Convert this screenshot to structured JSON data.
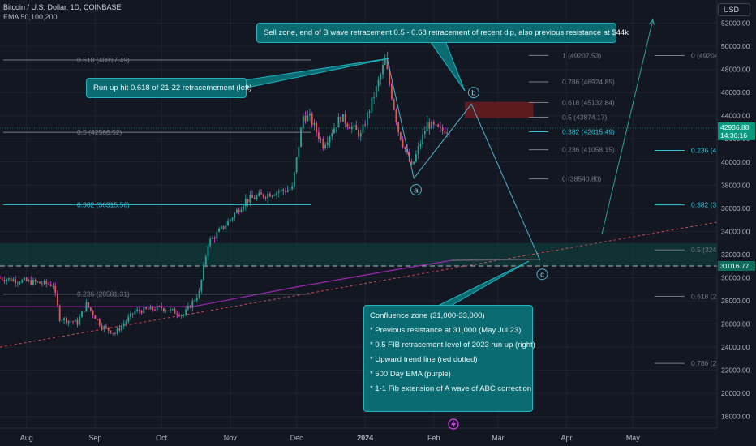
{
  "header": {
    "symbol": "Bitcoin / U.S. Dollar, 1D, COINBASE",
    "indicator": "EMA 50,100,200",
    "currency_button": "USD"
  },
  "annotations": {
    "sell_zone": "Sell zone, end of B wave retracement 0.5 - 0.68 retracement of recent dip, also previous resistance at $44k",
    "run_up": "Run up hit 0.618 of 21-22 retracemement (left)",
    "confluence_title": "Confluence zone (31,000-33,000)",
    "confluence_items": [
      "* Previous resistance at 31,000 (May Jul 23)",
      "* 0.5 FIB retracement level of 2023 run up (right)",
      "* Upward trend line (red dotted)",
      "* 500 Day EMA (purple)",
      "* 1-1 Fib extension of A wave of ABC correction"
    ]
  },
  "colors": {
    "background": "#131722",
    "up": "#26a69a",
    "down": "#ef5350",
    "candle_wick_down": "#e040fb",
    "ema": "#9c27b0",
    "fib_teal": "#26c6da",
    "fib_grey": "#787b86",
    "note_bg": "#0b6b73",
    "sell_zone": "#5d1a1f",
    "price_badge": "#089981",
    "support_badge": "#0b6b5c"
  },
  "chart_data": {
    "type": "candlestick",
    "y_axis_labels": [
      "52000.00",
      "50000.00",
      "48000.00",
      "46000.00",
      "44000.00",
      "42000.00",
      "40000.00",
      "38000.00",
      "36000.00",
      "34000.00",
      "32000.00",
      "30000.00",
      "28000.00",
      "26000.00",
      "24000.00",
      "22000.00",
      "20000.00",
      "18000.00"
    ],
    "y_axis_values": [
      52000,
      50000,
      48000,
      46000,
      44000,
      42000,
      40000,
      38000,
      36000,
      34000,
      32000,
      30000,
      28000,
      26000,
      24000,
      22000,
      20000,
      18000
    ],
    "x_axis_labels": [
      "Aug",
      "Sep",
      "Oct",
      "Nov",
      "Dec",
      "2024",
      "Feb",
      "Mar",
      "Apr",
      "May"
    ],
    "x_axis_dates": [
      "2023-08-01",
      "2023-09-01",
      "2023-10-01",
      "2023-11-01",
      "2023-12-01",
      "2024-01-01",
      "2024-02-01",
      "2024-03-01",
      "2024-04-01",
      "2024-05-01"
    ],
    "ylim": [
      17000,
      54000
    ],
    "xlim": [
      "2023-07-20",
      "2024-06-08"
    ],
    "last_price": {
      "value": 42936.88,
      "label": "42936.88",
      "countdown": "14:36:16"
    },
    "support_marker": {
      "value": 31016.77,
      "label": "31016.77"
    },
    "price_path": [
      {
        "date": "2023-07-20",
        "close": 30000
      },
      {
        "date": "2023-08-01",
        "close": 29700
      },
      {
        "date": "2023-08-14",
        "close": 29400
      },
      {
        "date": "2023-08-17",
        "close": 26500
      },
      {
        "date": "2023-08-25",
        "close": 26100
      },
      {
        "date": "2023-08-29",
        "close": 27700
      },
      {
        "date": "2023-09-05",
        "close": 25800
      },
      {
        "date": "2023-09-11",
        "close": 25200
      },
      {
        "date": "2023-09-20",
        "close": 27100
      },
      {
        "date": "2023-10-02",
        "close": 27400
      },
      {
        "date": "2023-10-12",
        "close": 26800
      },
      {
        "date": "2023-10-19",
        "close": 28700
      },
      {
        "date": "2023-10-23",
        "close": 33000
      },
      {
        "date": "2023-10-31",
        "close": 34600
      },
      {
        "date": "2023-11-09",
        "close": 36700
      },
      {
        "date": "2023-11-20",
        "close": 37300
      },
      {
        "date": "2023-11-30",
        "close": 37700
      },
      {
        "date": "2023-12-05",
        "close": 44000
      },
      {
        "date": "2023-12-08",
        "close": 43800
      },
      {
        "date": "2023-12-14",
        "close": 41500
      },
      {
        "date": "2023-12-22",
        "close": 43900
      },
      {
        "date": "2023-12-31",
        "close": 42300
      },
      {
        "date": "2024-01-08",
        "close": 46900
      },
      {
        "date": "2024-01-11",
        "close": 48800
      },
      {
        "date": "2024-01-17",
        "close": 42700
      },
      {
        "date": "2024-01-23",
        "close": 39500
      },
      {
        "date": "2024-01-30",
        "close": 43300
      },
      {
        "date": "2024-02-05",
        "close": 42700
      },
      {
        "date": "2024-02-09",
        "close": 42900
      }
    ],
    "ema_500": [
      {
        "date": "2023-07-20",
        "value": 27500
      },
      {
        "date": "2023-10-15",
        "value": 27500
      },
      {
        "date": "2023-12-01",
        "value": 29200
      },
      {
        "date": "2024-01-15",
        "value": 30700
      },
      {
        "date": "2024-02-09",
        "value": 31500
      }
    ],
    "ema_projection": [
      {
        "date": "2024-02-09",
        "value": 31500
      },
      {
        "date": "2024-03-20",
        "value": 31600
      }
    ],
    "trend_line": {
      "from": {
        "date": "2023-07-20",
        "value": 24000
      },
      "to": {
        "date": "2024-06-08",
        "value": 34800
      }
    },
    "support_band": [
      31000,
      33000
    ],
    "support_dashed": 31016.77,
    "fib_left": [
      {
        "ratio": "0.618",
        "value": 48817.49,
        "label": "0.618 (48817.49)",
        "color": "grey"
      },
      {
        "ratio": "0.5",
        "value": 42566.52,
        "label": "0.5 (42566.52)",
        "color": "grey"
      },
      {
        "ratio": "0.382",
        "value": 36315.56,
        "label": "0.382 (36315.56)",
        "color": "teal"
      },
      {
        "ratio": "0.236",
        "value": 28581.31,
        "label": "0.236 (28581.31)",
        "color": "grey"
      }
    ],
    "fib_mid": [
      {
        "ratio": "1",
        "value": 49207.53,
        "label": "1 (49207.53)",
        "color": "grey"
      },
      {
        "ratio": "0.786",
        "value": 46924.85,
        "label": "0.786 (46924.85)",
        "color": "grey"
      },
      {
        "ratio": "0.618",
        "value": 45132.84,
        "label": "0.618 (45132.84)",
        "color": "grey"
      },
      {
        "ratio": "0.5",
        "value": 43874.17,
        "label": "0.5 (43874.17)",
        "color": "grey"
      },
      {
        "ratio": "0.382",
        "value": 42615.49,
        "label": "0.382 (42615.49)",
        "color": "teal"
      },
      {
        "ratio": "0.236",
        "value": 41058.15,
        "label": "0.236 (41058.15)",
        "color": "grey"
      },
      {
        "ratio": "0",
        "value": 38540.8,
        "label": "0 (38540.80)",
        "color": "grey"
      }
    ],
    "fib_right": [
      {
        "ratio": "0",
        "value": 49204,
        "label": "0 (49204",
        "color": "grey"
      },
      {
        "ratio": "0.236",
        "value": 41000,
        "label": "0.236 (4",
        "color": "teal"
      },
      {
        "ratio": "0.382",
        "value": 36300,
        "label": "0.382 (36",
        "color": "teal"
      },
      {
        "ratio": "0.5",
        "value": 32400,
        "label": "0.5 (324",
        "color": "grey"
      },
      {
        "ratio": "0.618",
        "value": 28400,
        "label": "0.618 (28",
        "color": "grey"
      },
      {
        "ratio": "0.786",
        "value": 22600,
        "label": "0.786 (22",
        "color": "grey"
      }
    ],
    "sell_zone": {
      "from": "2024-02-15",
      "to": "2024-03-17",
      "low": 43800,
      "high": 45200
    },
    "waves": [
      {
        "label": "a",
        "date": "2024-01-24",
        "value": 37600
      },
      {
        "label": "b",
        "date": "2024-02-19",
        "value": 46000
      },
      {
        "label": "c",
        "date": "2024-03-21",
        "value": 30300
      }
    ],
    "wave_path": [
      {
        "date": "2024-01-11",
        "value": 48900
      },
      {
        "date": "2024-01-23",
        "value": 38600
      },
      {
        "date": "2024-02-18",
        "value": 45000
      },
      {
        "date": "2024-03-20",
        "value": 31500
      }
    ],
    "projection_arrow": {
      "from": {
        "date": "2024-04-17",
        "value": 33800
      },
      "to": {
        "date": "2024-05-10",
        "value": 52300
      }
    }
  }
}
